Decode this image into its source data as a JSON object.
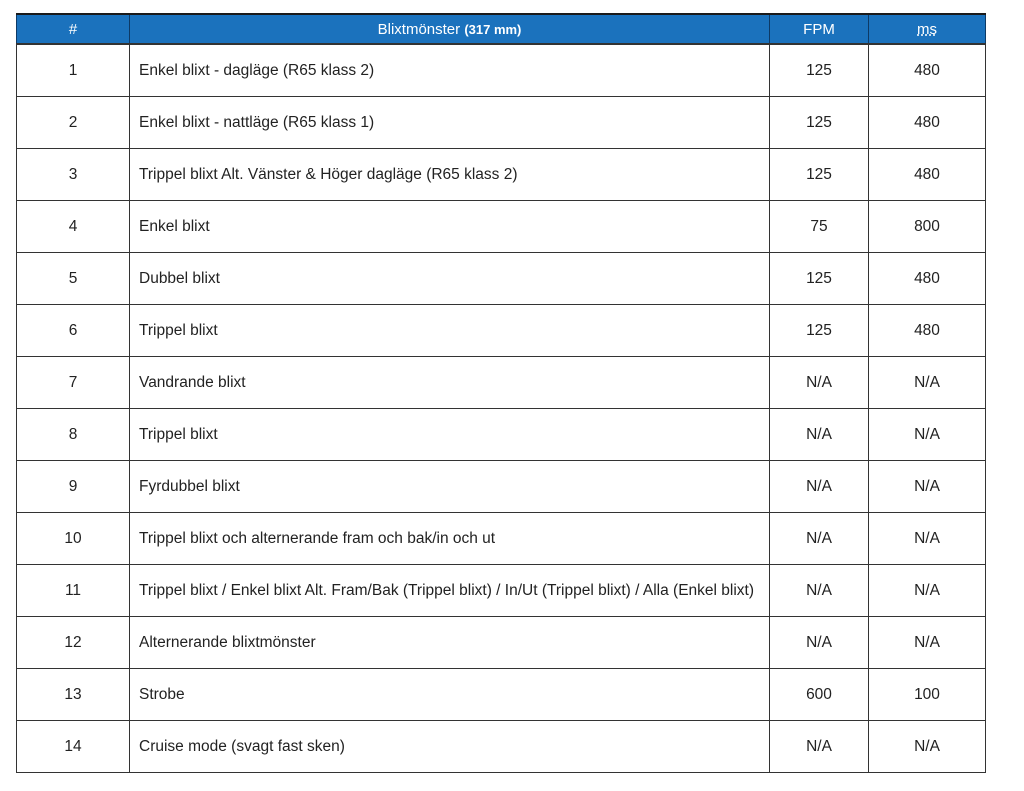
{
  "header": {
    "number": "#",
    "pattern": "Blixtmönster",
    "pattern_size": "(317 mm)",
    "fpm": "FPM",
    "ms": "ms"
  },
  "header_color": "#1b72bd",
  "rows": [
    {
      "n": "1",
      "pattern": "Enkel blixt - dagläge (R65 klass 2)",
      "fpm": "125",
      "ms": "480"
    },
    {
      "n": "2",
      "pattern": "Enkel blixt - nattläge (R65 klass 1)",
      "fpm": "125",
      "ms": "480"
    },
    {
      "n": "3",
      "pattern": "Trippel blixt Alt. Vänster & Höger dagläge (R65 klass 2)",
      "fpm": "125",
      "ms": "480"
    },
    {
      "n": "4",
      "pattern": "Enkel blixt",
      "fpm": "75",
      "ms": "800"
    },
    {
      "n": "5",
      "pattern": "Dubbel blixt",
      "fpm": "125",
      "ms": "480"
    },
    {
      "n": "6",
      "pattern": "Trippel blixt",
      "fpm": "125",
      "ms": "480"
    },
    {
      "n": "7",
      "pattern": "Vandrande blixt",
      "fpm": "N/A",
      "ms": "N/A"
    },
    {
      "n": "8",
      "pattern": "Trippel blixt",
      "fpm": "N/A",
      "ms": "N/A"
    },
    {
      "n": "9",
      "pattern": "Fyrdubbel blixt",
      "fpm": "N/A",
      "ms": "N/A"
    },
    {
      "n": "10",
      "pattern": "Trippel blixt och alternerande fram och bak/in och ut",
      "fpm": "N/A",
      "ms": "N/A"
    },
    {
      "n": "11",
      "pattern": "Trippel blixt / Enkel blixt Alt. Fram/Bak (Trippel blixt) / In/Ut (Trippel blixt) / Alla (Enkel blixt)",
      "fpm": "N/A",
      "ms": "N/A"
    },
    {
      "n": "12",
      "pattern": "Alternerande blixtmönster",
      "fpm": "N/A",
      "ms": "N/A"
    },
    {
      "n": "13",
      "pattern": "Strobe",
      "fpm": "600",
      "ms": "100"
    },
    {
      "n": "14",
      "pattern": "Cruise mode (svagt fast sken)",
      "fpm": "N/A",
      "ms": "N/A"
    }
  ]
}
